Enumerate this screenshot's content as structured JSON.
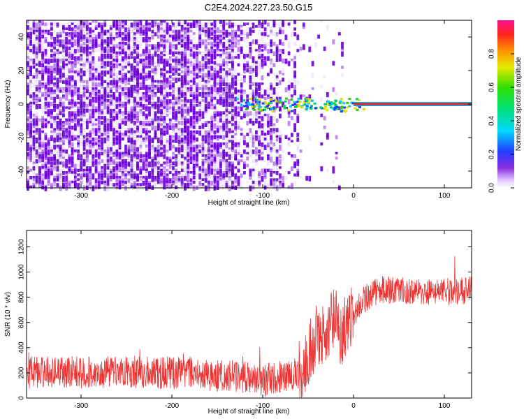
{
  "figure_title": "C2E4.2024.227.23.50.G15",
  "chart_data": [
    {
      "type": "heatmap",
      "title": "C2E4.2024.227.23.50.G15",
      "xlabel": "Height of straight line (km)",
      "ylabel": "Frequency (Hz)",
      "xlim": [
        -360,
        130
      ],
      "ylim": [
        -50,
        50
      ],
      "xticks": [
        -300,
        -200,
        -100,
        0,
        100
      ],
      "xtick_labels": [
        "-300",
        "-200",
        "-100",
        "0",
        "100"
      ],
      "yticks": [
        -40,
        -20,
        0,
        20,
        40
      ],
      "ytick_labels": [
        "-40",
        "-20",
        "0",
        "20",
        "40"
      ],
      "colorbar": {
        "label": "Normalized spectral amplitude",
        "range": [
          0,
          1
        ],
        "ticks": [
          0,
          0.2,
          0.4,
          0.6,
          0.8
        ],
        "tick_labels": [
          "0.0",
          "0.2",
          "0.4",
          "0.6",
          "0.8"
        ]
      },
      "colors": {
        "low": "#e8d8ff",
        "mid": "#8a2be2",
        "dark": "#6a00d8",
        "line": "#e8202a"
      }
    },
    {
      "type": "line",
      "xlabel": "Height of straight line (km)",
      "ylabel": "SNR (10 * v/v)",
      "xlim": [
        -360,
        130
      ],
      "ylim": [
        0,
        1330
      ],
      "xticks": [
        -300,
        -200,
        -100,
        0,
        100
      ],
      "xtick_labels": [
        "-300",
        "-200",
        "-100",
        "0",
        "100"
      ],
      "yticks": [
        0,
        200,
        400,
        600,
        800,
        1000,
        1200
      ],
      "ytick_labels": [
        "0",
        "200",
        "400",
        "600",
        "800",
        "1000",
        "1200"
      ],
      "series": [
        {
          "color": "#ee3333",
          "x": [
            -360,
            -330,
            -300,
            -250,
            -200,
            -150,
            -120,
            -100,
            -80,
            -60,
            -50,
            -45,
            -40,
            -30,
            -20,
            -15,
            -10,
            -5,
            0,
            10,
            20,
            30,
            50,
            80,
            100,
            130
          ],
          "y": [
            200,
            210,
            200,
            210,
            200,
            180,
            170,
            140,
            170,
            200,
            350,
            420,
            500,
            550,
            620,
            500,
            550,
            600,
            650,
            780,
            820,
            860,
            850,
            840,
            840,
            860
          ]
        }
      ]
    }
  ]
}
